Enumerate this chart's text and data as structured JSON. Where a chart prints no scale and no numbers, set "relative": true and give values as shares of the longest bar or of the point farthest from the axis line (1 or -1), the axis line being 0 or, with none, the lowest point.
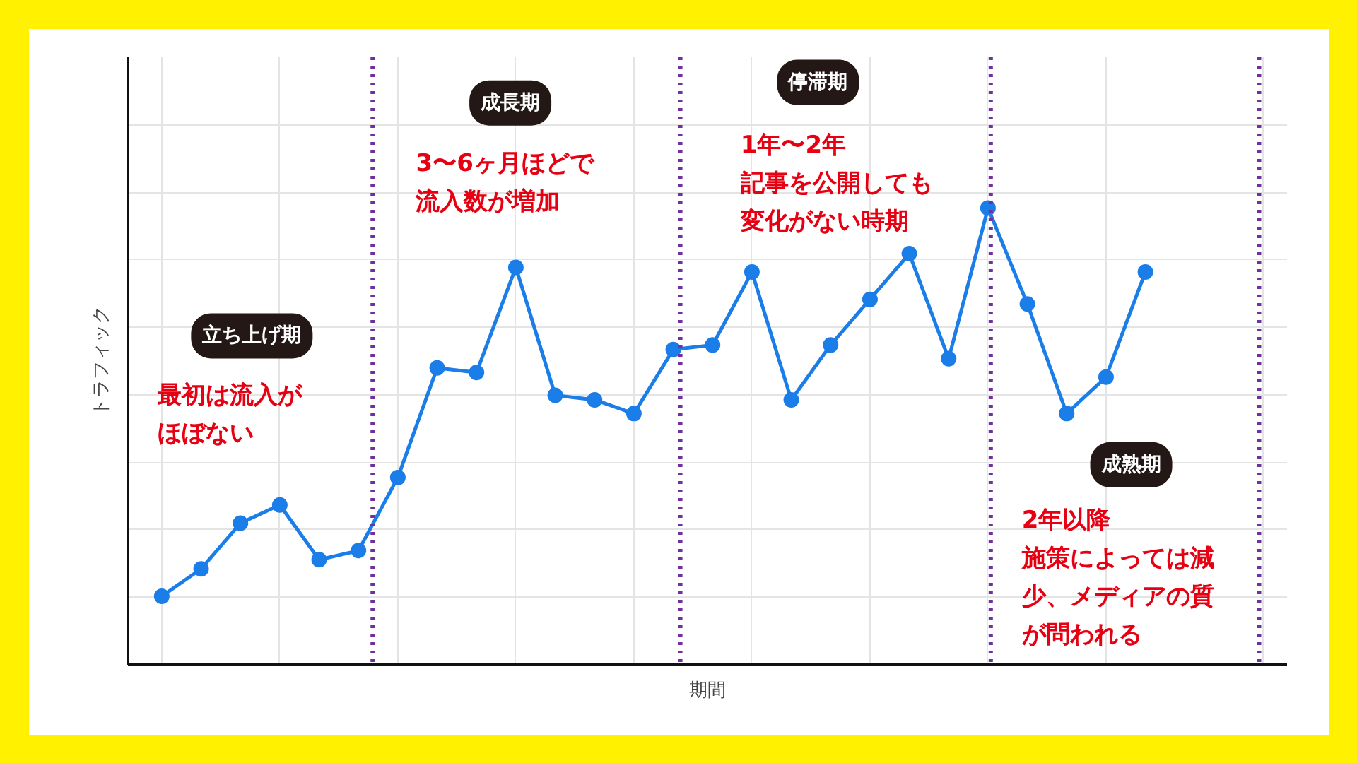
{
  "chart_data": {
    "type": "line",
    "relative": true,
    "xlabel": "期間",
    "ylabel": "トラフィック",
    "categories": [
      null,
      null,
      null,
      null,
      null,
      null,
      null,
      null,
      null,
      null,
      null,
      null,
      null,
      null,
      null,
      null,
      null,
      null,
      null,
      null,
      null,
      null,
      null,
      null,
      null,
      null
    ],
    "series": [
      {
        "color": "#1a7de8",
        "values": [
          0.15,
          0.21,
          0.31,
          0.35,
          0.23,
          0.25,
          0.41,
          0.65,
          0.64,
          0.87,
          0.59,
          0.58,
          0.55,
          0.69,
          0.7,
          0.86,
          0.58,
          0.7,
          0.8,
          0.9,
          0.67,
          1.0,
          0.79,
          0.55,
          0.63,
          0.86
        ]
      }
    ],
    "marker": "circle",
    "line_style": "solid",
    "grid": true,
    "tick_labels": false,
    "annotations": [
      "立ち上げ期",
      "最初は流入がほぼない",
      "成長期",
      "3〜6ヶ月ほどで流入数が増加",
      "停滞期",
      "1年〜2年記事を公開しても変化がない時期",
      "成熟期",
      "2年以降施策によっては減少、メディアの質が問われる"
    ]
  }
}
